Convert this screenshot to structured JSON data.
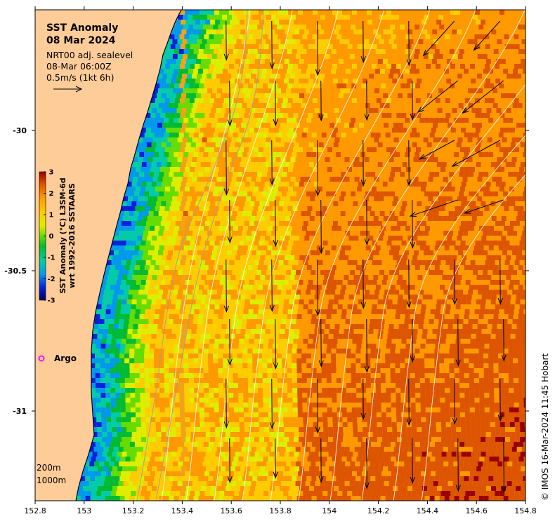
{
  "map": {
    "title_line1": "SST Anomaly",
    "title_line2": "08 Mar 2024",
    "source": "NRT00 adj. sealevel",
    "time": "08-Mar 06:00Z",
    "scale_label": "0.5m/s (1kt 6h)",
    "credit": "© IMOS 16-Mar-2024 11:45 Hobart",
    "argo_label": "Argo",
    "depth_contours": [
      "200m",
      "1000m"
    ],
    "extent": {
      "lon_min": 152.8,
      "lon_max": 154.8,
      "lat_min": -31.32,
      "lat_max": -29.57
    },
    "x_ticks": [
      "152.8",
      "153",
      "153.2",
      "153.4",
      "153.6",
      "153.8",
      "154",
      "154.2",
      "154.4",
      "154.6",
      "154.8"
    ],
    "y_ticks": [
      "-30",
      "-30.5",
      "-31"
    ],
    "colorbar": {
      "title_line1": "SST Anomaly (°C) L3SM-6d",
      "title_line2": "wrt 1992-2016 SSTAARS",
      "ticks": [
        "3",
        "2",
        "1",
        "0",
        "-1",
        "-2",
        "-3"
      ],
      "range": [
        -3,
        3
      ],
      "colors": [
        "#000066",
        "#0022dd",
        "#0099ee",
        "#00ccaa",
        "#00bb33",
        "#66dd00",
        "#ddee00",
        "#ffcc00",
        "#ff9900",
        "#dd5500",
        "#990000"
      ]
    },
    "colors": {
      "land": "#fecc99",
      "coast": "#000000",
      "ocean_warm": "#f2a21a",
      "contour_white": "#ffffff",
      "isobath": "#a0a0a0",
      "argo": "#ff00ff"
    }
  }
}
